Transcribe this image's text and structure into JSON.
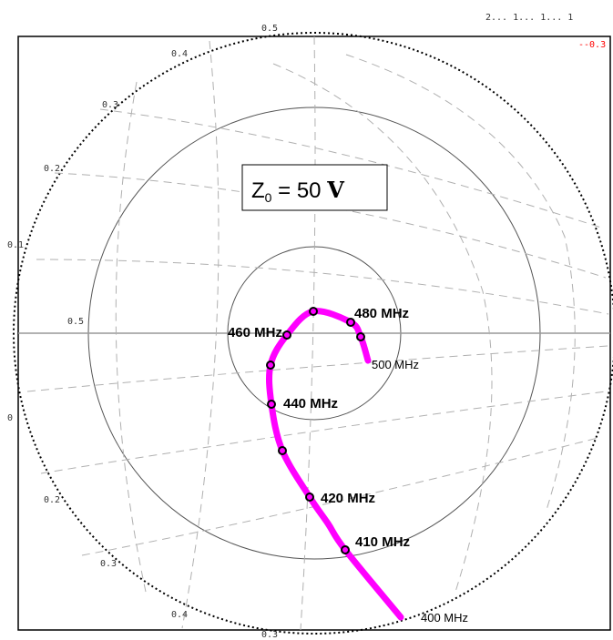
{
  "chart_data": {
    "type": "scatter",
    "title": "",
    "header_text": "2... 1... 1... 1",
    "corner_marker": "--0.3",
    "annotation": {
      "prefix": "Z",
      "subscript": "0",
      "suffix": " = 50 ",
      "symbol": "V"
    },
    "rim_labels": [
      "0.5",
      "0.4",
      "0.3",
      "0.2",
      "0.1",
      "0.5",
      "0",
      "0.2",
      "0.3",
      "0.4",
      "0.3"
    ],
    "grid": true,
    "series": [
      {
        "color": "#ff00ff",
        "points": [
          {
            "freq_mhz": 400,
            "label": "400 MHz",
            "marker": false,
            "emphasis": false
          },
          {
            "freq_mhz": 410,
            "label": "410 MHz",
            "marker": true,
            "emphasis": true
          },
          {
            "freq_mhz": 415,
            "label": "",
            "marker": false,
            "emphasis": false
          },
          {
            "freq_mhz": 420,
            "label": "420 MHz",
            "marker": true,
            "emphasis": true
          },
          {
            "freq_mhz": 430,
            "label": "",
            "marker": true,
            "emphasis": false
          },
          {
            "freq_mhz": 440,
            "label": "440 MHz",
            "marker": true,
            "emphasis": true
          },
          {
            "freq_mhz": 450,
            "label": "",
            "marker": true,
            "emphasis": false
          },
          {
            "freq_mhz": 460,
            "label": "460 MHz",
            "marker": true,
            "emphasis": true
          },
          {
            "freq_mhz": 470,
            "label": "",
            "marker": true,
            "emphasis": false
          },
          {
            "freq_mhz": 480,
            "label": "480 MHz",
            "marker": true,
            "emphasis": true
          },
          {
            "freq_mhz": 490,
            "label": "",
            "marker": true,
            "emphasis": false
          },
          {
            "freq_mhz": 500,
            "label": "500 MHz",
            "marker": false,
            "emphasis": false
          }
        ]
      }
    ]
  }
}
